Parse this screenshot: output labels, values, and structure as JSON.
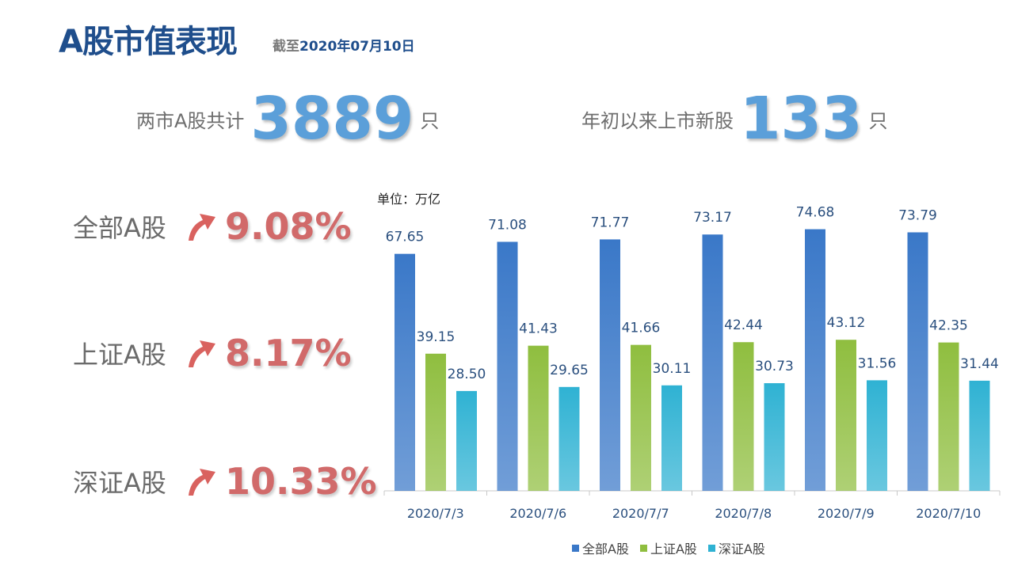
{
  "header": {
    "title": "A股市值表现",
    "subtitle_prefix": "截至",
    "subtitle_date": "2020年07月10日"
  },
  "stats": [
    {
      "label": "两市A股共计",
      "value": "3889",
      "unit": "只"
    },
    {
      "label": "年初以来上市新股",
      "value": "133",
      "unit": "只"
    }
  ],
  "growth": [
    {
      "name": "全部A股",
      "value": "9.08%"
    },
    {
      "name": "上证A股",
      "value": "8.17%"
    },
    {
      "name": "深证A股",
      "value": "10.33%"
    }
  ],
  "colors": {
    "all": "#3a78c8",
    "sh": "#8fbe3f",
    "sz": "#2fb2d3",
    "arrow": "#d9625f"
  },
  "chart_data": {
    "type": "bar",
    "unit_label": "单位：万亿",
    "categories": [
      "2020/7/3",
      "2020/7/6",
      "2020/7/7",
      "2020/7/8",
      "2020/7/9",
      "2020/7/10"
    ],
    "series": [
      {
        "name": "全部A股",
        "values": [
          67.65,
          71.08,
          71.77,
          73.17,
          74.68,
          73.79
        ]
      },
      {
        "name": "上证A股",
        "values": [
          39.15,
          41.43,
          41.66,
          42.44,
          43.12,
          42.35
        ]
      },
      {
        "name": "深证A股",
        "values": [
          28.5,
          29.65,
          30.11,
          30.73,
          31.56,
          31.44
        ]
      }
    ],
    "ylim": [
      0,
      80
    ],
    "grid": false,
    "legend": "bottom"
  }
}
